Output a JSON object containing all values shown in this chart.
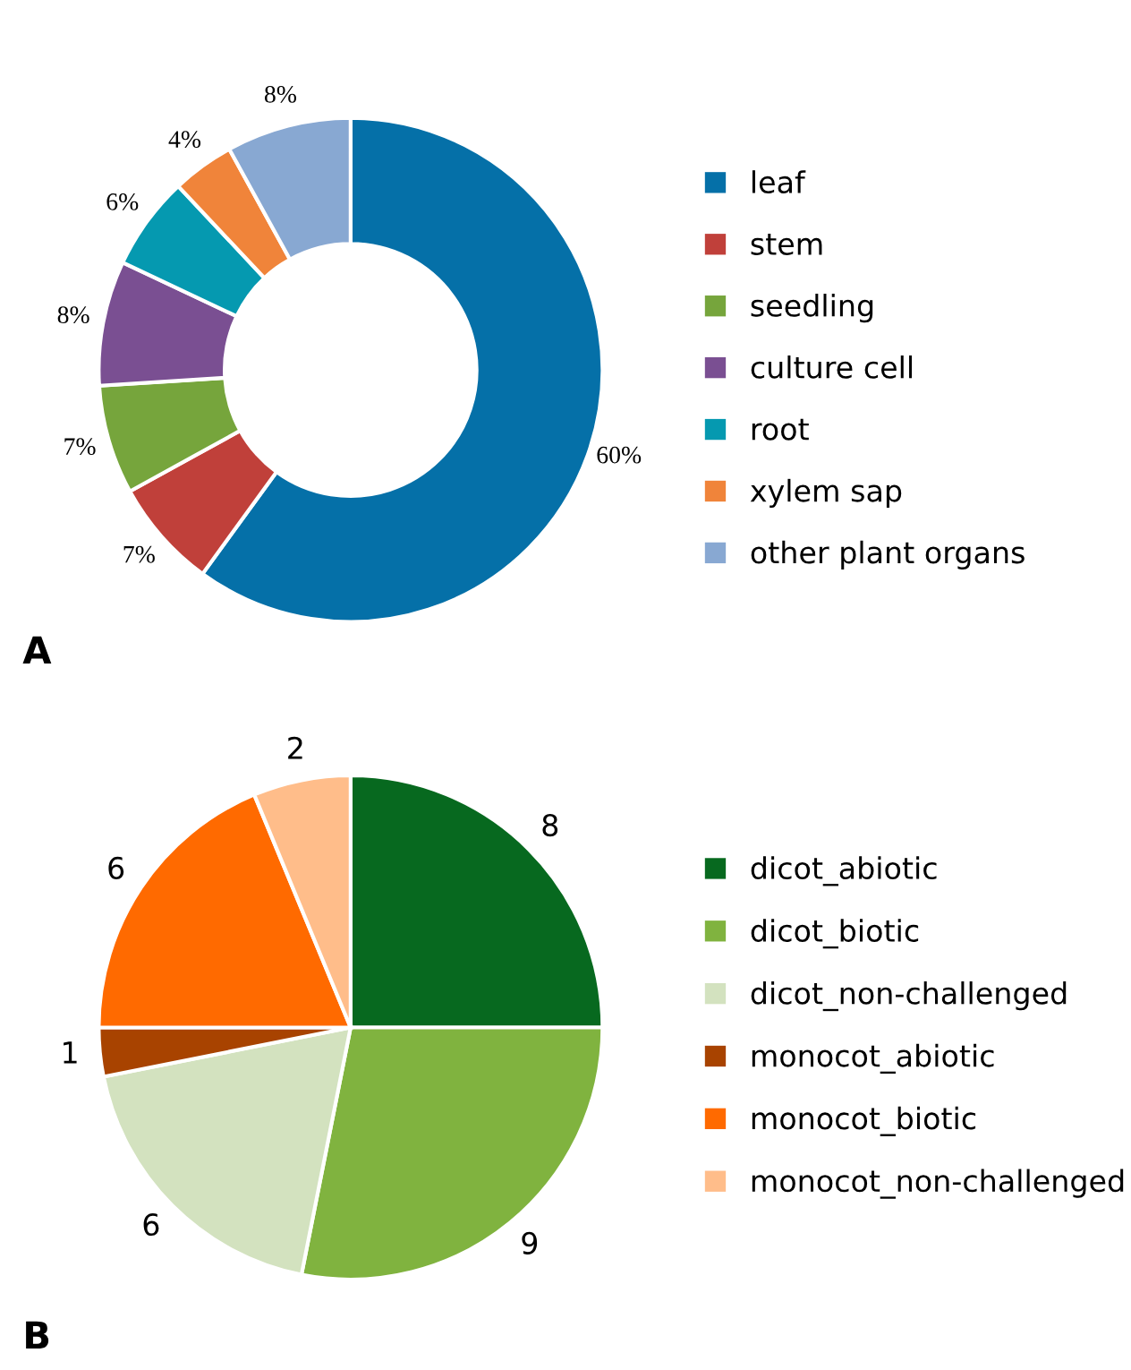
{
  "chart_data": [
    {
      "type": "donut",
      "categories": [
        "leaf",
        "stem",
        "seedling",
        "culture cell",
        "root",
        "xylem sap",
        "other plant organs"
      ],
      "values": [
        60,
        7,
        7,
        8,
        6,
        4,
        8
      ],
      "value_labels": [
        "60%",
        "7%",
        "7%",
        "8%",
        "6%",
        "4%",
        "8%"
      ],
      "colors": [
        "#0570a8",
        "#c0403a",
        "#76a53c",
        "#7a4f92",
        "#0599b0",
        "#f0843a",
        "#88a8d2"
      ],
      "legend": "right",
      "annotations": [
        "A"
      ]
    },
    {
      "type": "pie",
      "categories": [
        "dicot_abiotic",
        "dicot_biotic",
        "dicot_non-challenged",
        "monocot_abiotic",
        "monocot_biotic",
        "monocot_non-challenged"
      ],
      "values": [
        8,
        9,
        6,
        1,
        6,
        2
      ],
      "data_labels": true,
      "colors": [
        "#07691f",
        "#80b33f",
        "#d3e2bf",
        "#a84300",
        "#ff6a00",
        "#ffbd8a"
      ],
      "legend": "right",
      "annotations": [
        "B"
      ]
    }
  ]
}
